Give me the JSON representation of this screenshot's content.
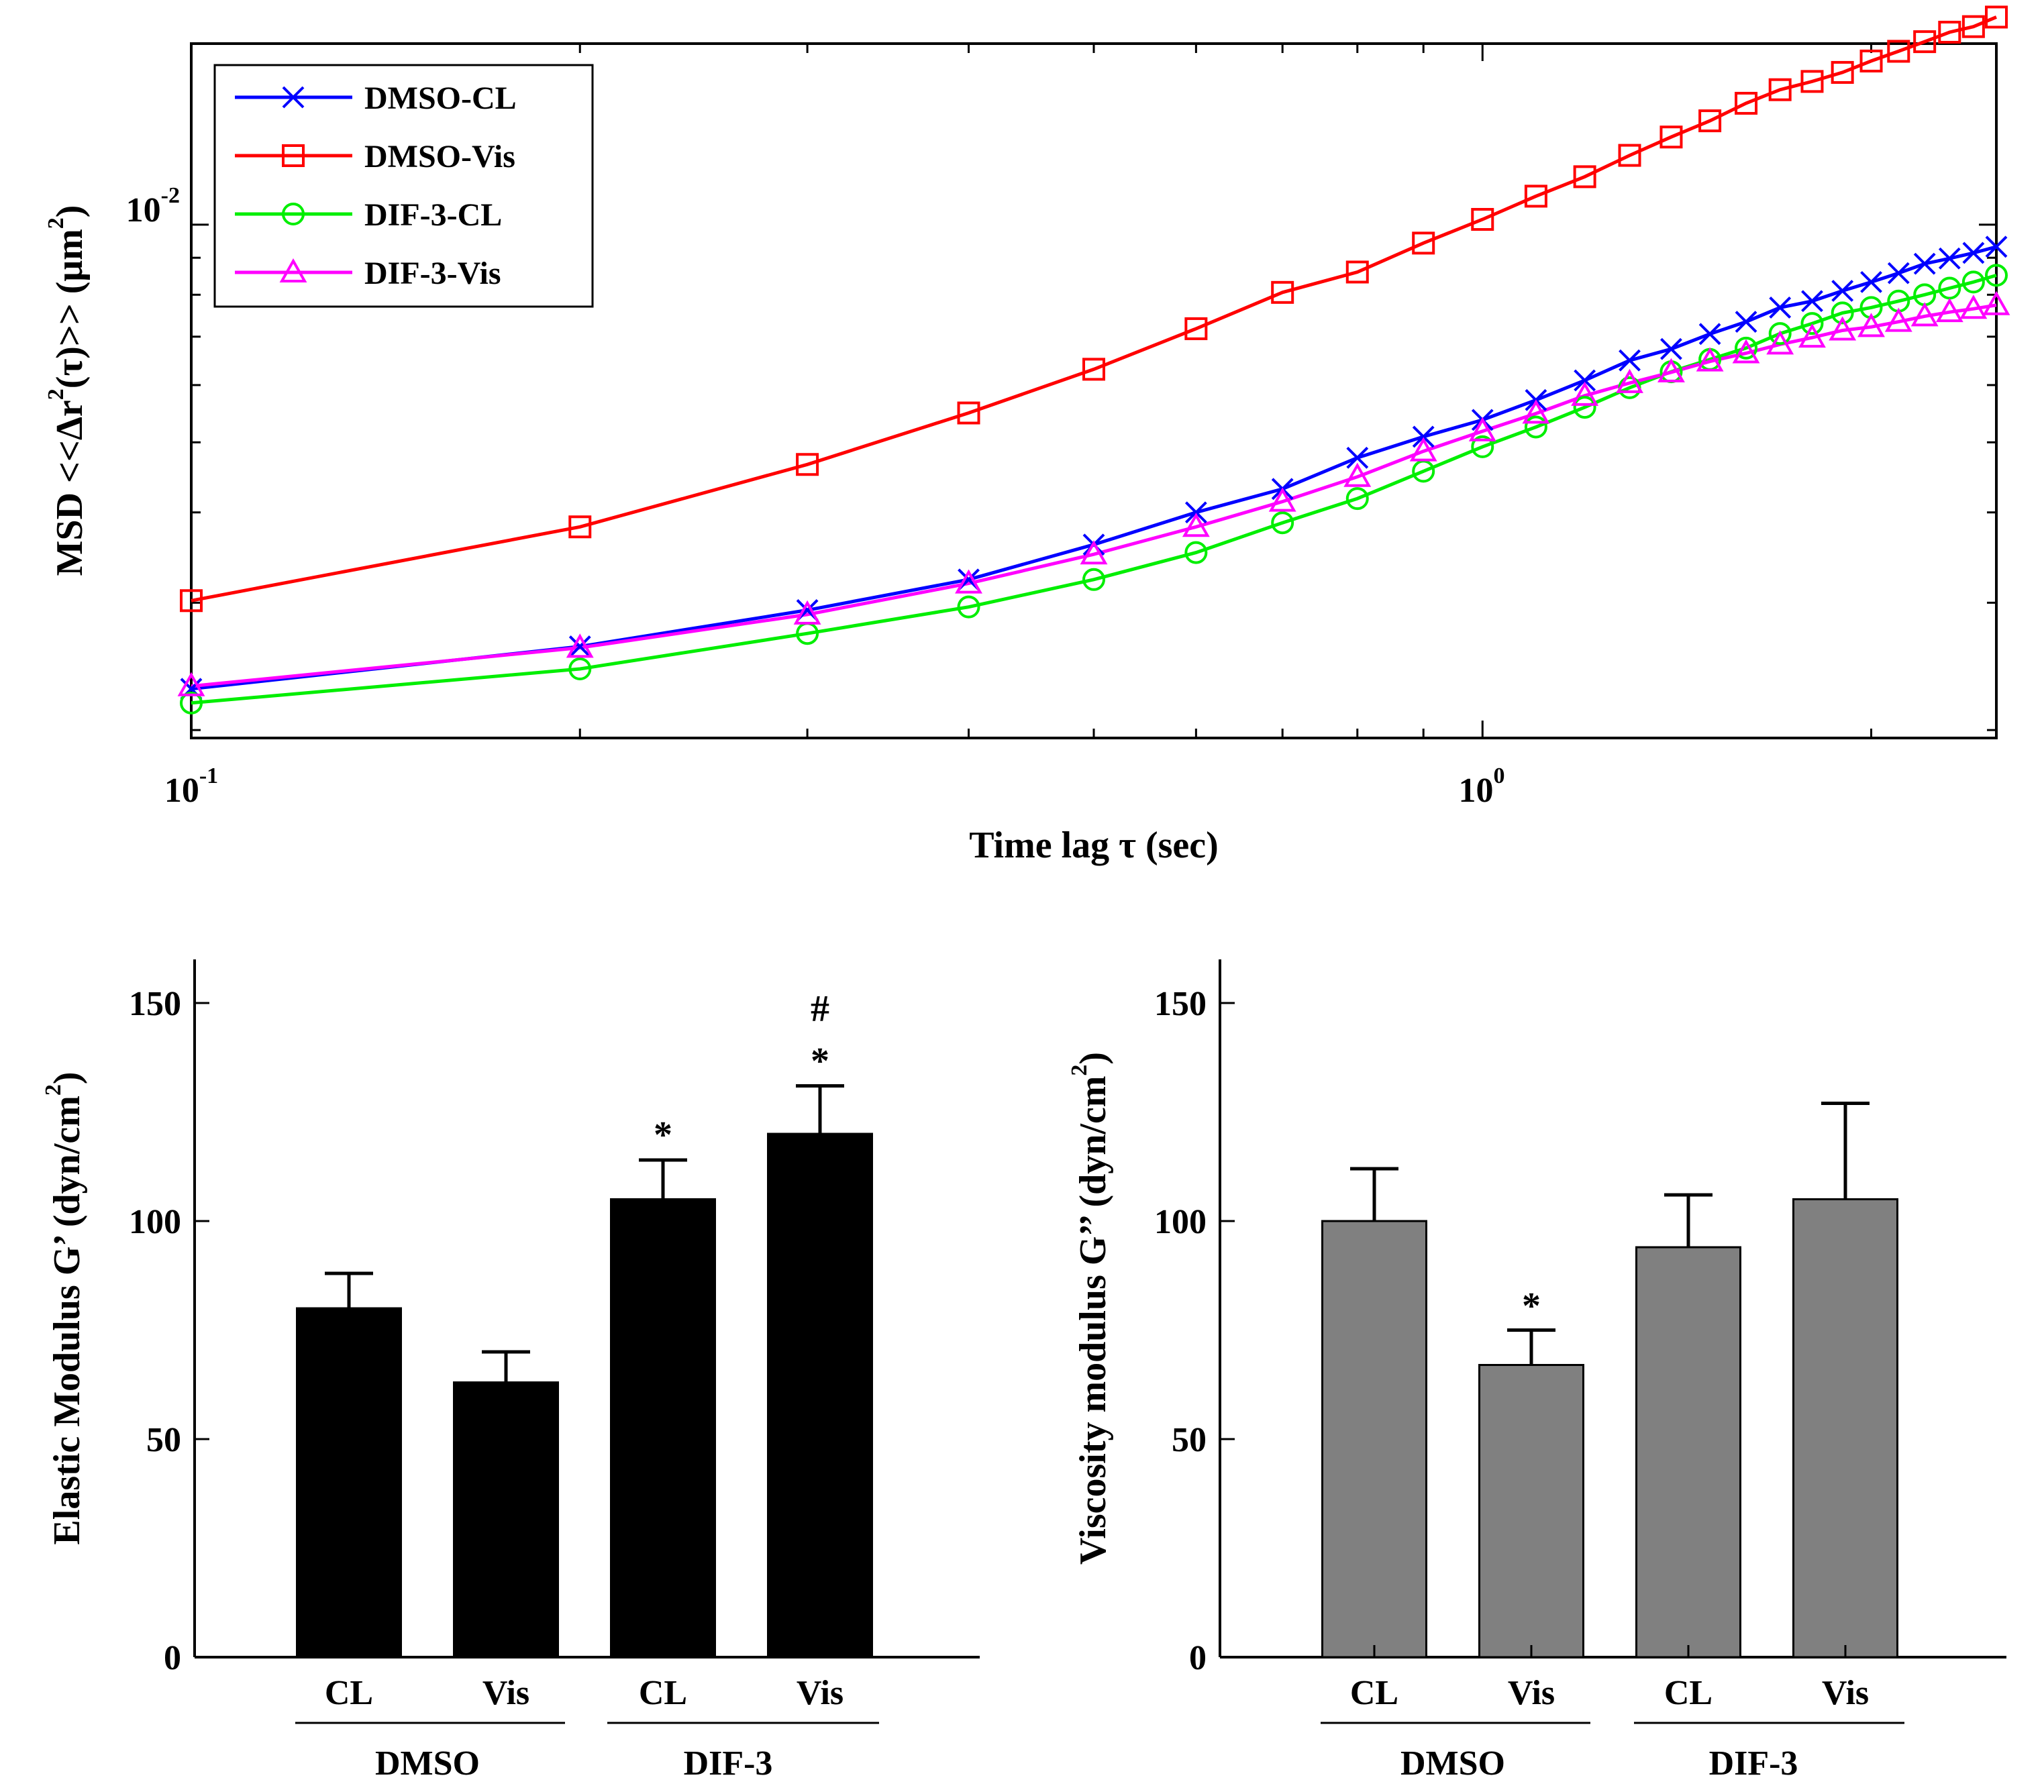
{
  "chart_data": [
    {
      "type": "line",
      "xscale": "log",
      "yscale": "log",
      "xlabel": "Time lag τ (sec)",
      "ylabel_main": "MSD <<Δr",
      "ylabel_sup": "2",
      "ylabel_mid": "(τ)>> (μm",
      "ylabel_sup2": "2",
      "ylabel_end": ")",
      "xlim": [
        0.1,
        2.5
      ],
      "ylim": [
        0.00195,
        0.0178
      ],
      "x_tick_labels": [
        {
          "base": "10",
          "exp": "-1"
        },
        {
          "base": "10",
          "exp": "0"
        }
      ],
      "y_tick_label": {
        "base": "10",
        "exp": "-2"
      },
      "series": [
        {
          "name": "DMSO-CL",
          "color": "#0000ff",
          "marker": "x",
          "x": [
            0.1,
            0.2,
            0.3,
            0.4,
            0.5,
            0.6,
            0.7,
            0.8,
            0.9,
            1.0,
            1.1,
            1.2,
            1.3,
            1.4,
            1.5,
            1.6,
            1.7,
            1.8,
            1.9,
            2.0,
            2.1,
            2.2,
            2.3,
            2.4,
            2.5
          ],
          "y": [
            0.00228,
            0.00261,
            0.00293,
            0.00323,
            0.00361,
            0.004,
            0.00431,
            0.00476,
            0.00509,
            0.00537,
            0.00572,
            0.00609,
            0.00649,
            0.00673,
            0.00706,
            0.00734,
            0.00768,
            0.00784,
            0.0081,
            0.00833,
            0.00857,
            0.00883,
            0.00898,
            0.00914,
            0.00932
          ]
        },
        {
          "name": "DMSO-Vis",
          "color": "#ff0000",
          "marker": "square",
          "x": [
            0.1,
            0.2,
            0.3,
            0.4,
            0.5,
            0.6,
            0.7,
            0.8,
            0.9,
            1.0,
            1.1,
            1.2,
            1.3,
            1.4,
            1.5,
            1.6,
            1.7,
            1.8,
            1.9,
            2.0,
            2.1,
            2.2,
            2.3,
            2.4,
            2.5
          ],
          "y": [
            0.00302,
            0.00382,
            0.00466,
            0.00549,
            0.00631,
            0.00718,
            0.00806,
            0.0086,
            0.00943,
            0.01017,
            0.01095,
            0.01165,
            0.01247,
            0.01322,
            0.01392,
            0.01472,
            0.01537,
            0.01578,
            0.01624,
            0.01684,
            0.01737,
            0.01791,
            0.01846,
            0.01879,
            0.01937
          ]
        },
        {
          "name": "DIF-3-CL",
          "color": "#00ee00",
          "marker": "circle",
          "x": [
            0.1,
            0.2,
            0.3,
            0.4,
            0.5,
            0.6,
            0.7,
            0.8,
            0.9,
            1.0,
            1.1,
            1.2,
            1.3,
            1.4,
            1.5,
            1.6,
            1.7,
            1.8,
            1.9,
            2.0,
            2.1,
            2.2,
            2.3,
            2.4,
            2.5
          ],
          "y": [
            0.00218,
            0.00243,
            0.00272,
            0.00296,
            0.00323,
            0.00352,
            0.00387,
            0.00418,
            0.00456,
            0.00493,
            0.00525,
            0.00559,
            0.00595,
            0.00626,
            0.00651,
            0.00675,
            0.00707,
            0.0073,
            0.00755,
            0.00768,
            0.00784,
            0.008,
            0.00817,
            0.00833,
            0.00851
          ]
        },
        {
          "name": "DIF-3-Vis",
          "color": "#ff00ff",
          "marker": "triangle",
          "x": [
            0.1,
            0.2,
            0.3,
            0.4,
            0.5,
            0.6,
            0.7,
            0.8,
            0.9,
            1.0,
            1.1,
            1.2,
            1.3,
            1.4,
            1.5,
            1.6,
            1.7,
            1.8,
            1.9,
            2.0,
            2.1,
            2.2,
            2.3,
            2.4,
            2.5
          ],
          "y": [
            0.0023,
            0.0026,
            0.00289,
            0.00319,
            0.0035,
            0.00382,
            0.00414,
            0.00448,
            0.00486,
            0.00518,
            0.00548,
            0.0058,
            0.00604,
            0.00625,
            0.00647,
            0.00664,
            0.00683,
            0.00698,
            0.00714,
            0.00722,
            0.00734,
            0.00747,
            0.00757,
            0.00765,
            0.00774
          ]
        }
      ]
    },
    {
      "type": "bar",
      "ylabel": "Elastic Modulus G’ (dyn/cm",
      "ylabel_sup": "2",
      "ylabel_end": ")",
      "ylim": [
        0,
        160
      ],
      "y_ticks": [
        0,
        50,
        100,
        150
      ],
      "bar_color": "#000000",
      "categories": [
        "CL",
        "Vis",
        "CL",
        "Vis"
      ],
      "groups": [
        "DMSO",
        "DIF-3"
      ],
      "values": [
        80,
        63,
        105,
        120
      ],
      "errors": [
        8,
        7,
        9,
        11
      ],
      "annotations": [
        "",
        "",
        "*",
        "*"
      ],
      "annotations2": [
        "",
        "",
        "",
        "#"
      ]
    },
    {
      "type": "bar",
      "ylabel": "Viscosity modulus G’’ (dyn/cm",
      "ylabel_sup": "2",
      "ylabel_end": ")",
      "ylim": [
        0,
        160
      ],
      "y_ticks": [
        0,
        50,
        100,
        150
      ],
      "bar_color": "#808080",
      "categories": [
        "CL",
        "Vis",
        "CL",
        "Vis"
      ],
      "groups": [
        "DMSO",
        "DIF-3"
      ],
      "values": [
        100,
        67,
        94,
        105
      ],
      "errors": [
        12,
        8,
        12,
        22
      ],
      "annotations": [
        "",
        "*",
        "",
        ""
      ],
      "annotations2": [
        "",
        "",
        "",
        ""
      ]
    }
  ]
}
